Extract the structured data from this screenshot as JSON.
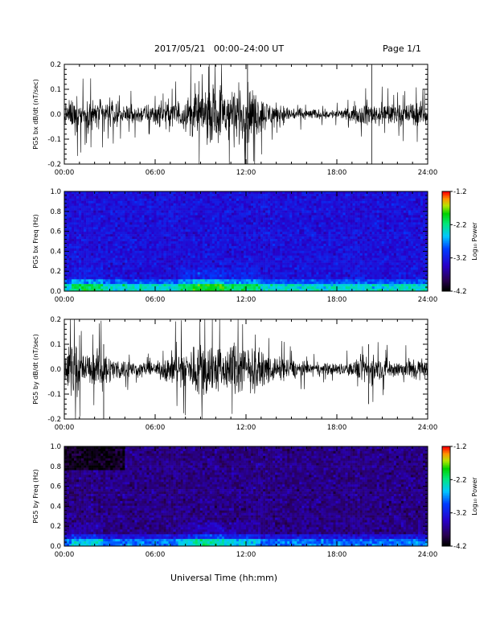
{
  "header": {
    "title": "2017/05/21   00:00–24:00 UT",
    "page": "Page 1/1"
  },
  "xlabel": "Universal Time (hh:mm)",
  "chart_data": [
    {
      "type": "line",
      "ylabel": "PG5 bx dB/dt (nT/sec)",
      "xlim": [
        0,
        24
      ],
      "ylim": [
        -0.2,
        0.2
      ],
      "x_ticks": [
        "00:00",
        "06:00",
        "12:00",
        "18:00",
        "24:00"
      ],
      "y_ticks": [
        "0.2",
        "0.1",
        "0.0",
        "-0.1",
        "-0.2"
      ],
      "envelope": {
        "hours": [
          0,
          1,
          2,
          3,
          4,
          5,
          6,
          7,
          8,
          8.5,
          9,
          9.5,
          10,
          10.5,
          11,
          11.5,
          12,
          12.5,
          13,
          14,
          15,
          16,
          17,
          18,
          19,
          20,
          21,
          22,
          23,
          24
        ],
        "amplitude": [
          0.08,
          0.12,
          0.1,
          0.09,
          0.06,
          0.06,
          0.07,
          0.09,
          0.1,
          0.16,
          0.2,
          0.17,
          0.18,
          0.2,
          0.2,
          0.18,
          0.2,
          0.16,
          0.11,
          0.07,
          0.05,
          0.035,
          0.03,
          0.03,
          0.04,
          0.08,
          0.07,
          0.06,
          0.08,
          0.07
        ]
      },
      "spikes": [
        {
          "hour": 20.3,
          "min": -0.2,
          "max": 0.2
        },
        {
          "hour": 12.1,
          "min": -0.2,
          "max": 0.2
        }
      ]
    },
    {
      "type": "heatmap",
      "ylabel": "PG5 bx Freq (Hz)",
      "xlim": [
        0,
        24
      ],
      "ylim": [
        0,
        1.0
      ],
      "x_ticks": [
        "00:00",
        "06:00",
        "12:00",
        "18:00",
        "24:00"
      ],
      "y_ticks": [
        "1.0",
        "0.8",
        "0.6",
        "0.4",
        "0.2",
        "0.0"
      ],
      "colorbar": {
        "label": "Log₁₀ Power",
        "ticks": [
          "-1.2",
          "-2.2",
          "-3.2",
          "-4.2"
        ],
        "range": [
          -4.2,
          -1.2
        ]
      },
      "base_level": -3.3
    },
    {
      "type": "line",
      "ylabel": "PG5 by dB/dt (nT/sec)",
      "xlim": [
        0,
        24
      ],
      "ylim": [
        -0.2,
        0.2
      ],
      "x_ticks": [
        "00:00",
        "06:00",
        "12:00",
        "18:00",
        "24:00"
      ],
      "y_ticks": [
        "0.2",
        "0.1",
        "0.0",
        "-0.1",
        "-0.2"
      ],
      "envelope": {
        "hours": [
          0,
          0.5,
          1,
          1.5,
          2,
          2.5,
          3,
          4,
          5,
          6,
          7,
          7.5,
          8,
          8.5,
          9,
          9.5,
          10,
          10.5,
          11,
          11.5,
          12,
          12.5,
          13,
          14,
          15,
          16,
          17,
          18,
          19,
          20,
          21,
          22,
          23,
          24
        ],
        "amplitude": [
          0.06,
          0.2,
          0.12,
          0.1,
          0.1,
          0.15,
          0.08,
          0.06,
          0.05,
          0.04,
          0.1,
          0.14,
          0.12,
          0.15,
          0.2,
          0.2,
          0.17,
          0.14,
          0.16,
          0.18,
          0.16,
          0.13,
          0.1,
          0.08,
          0.06,
          0.05,
          0.04,
          0.04,
          0.05,
          0.1,
          0.07,
          0.06,
          0.08,
          0.07
        ]
      },
      "spikes": [
        {
          "hour": 2.6,
          "min": -0.2,
          "max": 0.1
        },
        {
          "hour": 20.1,
          "min": -0.14,
          "max": 0.1
        }
      ]
    },
    {
      "type": "heatmap",
      "ylabel": "PG5 by Freq (Hz)",
      "xlim": [
        0,
        24
      ],
      "ylim": [
        0,
        1.0
      ],
      "x_ticks": [
        "00:00",
        "06:00",
        "12:00",
        "18:00",
        "24:00"
      ],
      "y_ticks": [
        "1.0",
        "0.8",
        "0.6",
        "0.4",
        "0.2",
        "0.0"
      ],
      "colorbar": {
        "label": "Log₁₀ Power",
        "ticks": [
          "-1.2",
          "-2.2",
          "-3.2",
          "-4.2"
        ],
        "range": [
          -4.2,
          -1.2
        ]
      },
      "base_level": -3.7
    }
  ]
}
